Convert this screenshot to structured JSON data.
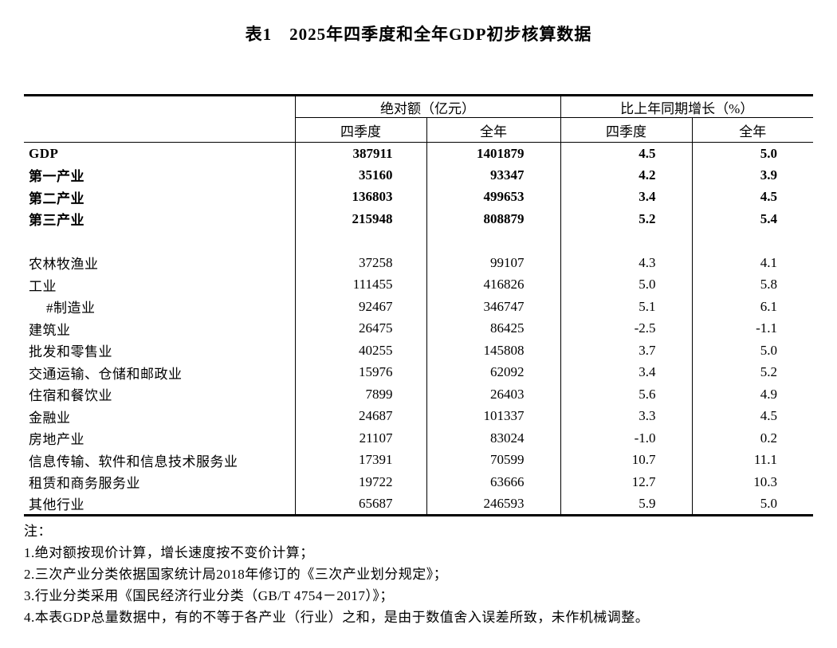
{
  "title": "表1　2025年四季度和全年GDP初步核算数据",
  "colors": {
    "text": "#000000",
    "background": "#ffffff",
    "table_rule": "#000000"
  },
  "table": {
    "col_groups": [
      {
        "label": "绝对额（亿元）"
      },
      {
        "label": "比上年同期增长（%）"
      }
    ],
    "sub_headers": [
      "四季度",
      "全年",
      "四季度",
      "全年"
    ],
    "rows": [
      {
        "label": "GDP",
        "bold": true,
        "values": [
          "387911",
          "1401879",
          "4.5",
          "5.0"
        ]
      },
      {
        "label": "第一产业",
        "bold": true,
        "values": [
          "35160",
          "93347",
          "4.2",
          "3.9"
        ]
      },
      {
        "label": "第二产业",
        "bold": true,
        "values": [
          "136803",
          "499653",
          "3.4",
          "4.5"
        ]
      },
      {
        "label": "第三产业",
        "bold": true,
        "values": [
          "215948",
          "808879",
          "5.2",
          "5.4"
        ]
      },
      {
        "label": "",
        "blank": true,
        "values": [
          "",
          "",
          "",
          ""
        ]
      },
      {
        "label": "农林牧渔业",
        "values": [
          "37258",
          "99107",
          "4.3",
          "4.1"
        ]
      },
      {
        "label": "工业",
        "values": [
          "111455",
          "416826",
          "5.0",
          "5.8"
        ]
      },
      {
        "label": "#制造业",
        "indent": true,
        "values": [
          "92467",
          "346747",
          "5.1",
          "6.1"
        ]
      },
      {
        "label": "建筑业",
        "values": [
          "26475",
          "86425",
          "-2.5",
          "-1.1"
        ]
      },
      {
        "label": "批发和零售业",
        "values": [
          "40255",
          "145808",
          "3.7",
          "5.0"
        ]
      },
      {
        "label": "交通运输、仓储和邮政业",
        "values": [
          "15976",
          "62092",
          "3.4",
          "5.2"
        ]
      },
      {
        "label": "住宿和餐饮业",
        "values": [
          "7899",
          "26403",
          "5.6",
          "4.9"
        ]
      },
      {
        "label": "金融业",
        "values": [
          "24687",
          "101337",
          "3.3",
          "4.5"
        ]
      },
      {
        "label": "房地产业",
        "values": [
          "21107",
          "83024",
          "-1.0",
          "0.2"
        ]
      },
      {
        "label": "信息传输、软件和信息技术服务业",
        "values": [
          "17391",
          "70599",
          "10.7",
          "11.1"
        ]
      },
      {
        "label": "租赁和商务服务业",
        "values": [
          "19722",
          "63666",
          "12.7",
          "10.3"
        ]
      },
      {
        "label": "其他行业",
        "values": [
          "65687",
          "246593",
          "5.9",
          "5.0"
        ]
      }
    ]
  },
  "notes": {
    "heading": "注：",
    "items": [
      "1.绝对额按现价计算，增长速度按不变价计算；",
      "2.三次产业分类依据国家统计局2018年修订的《三次产业划分规定》；",
      "3.行业分类采用《国民经济行业分类（GB/T 4754－2017）》；",
      "4.本表GDP总量数据中，有的不等于各产业（行业）之和，是由于数值舍入误差所致，未作机械调整。"
    ]
  }
}
